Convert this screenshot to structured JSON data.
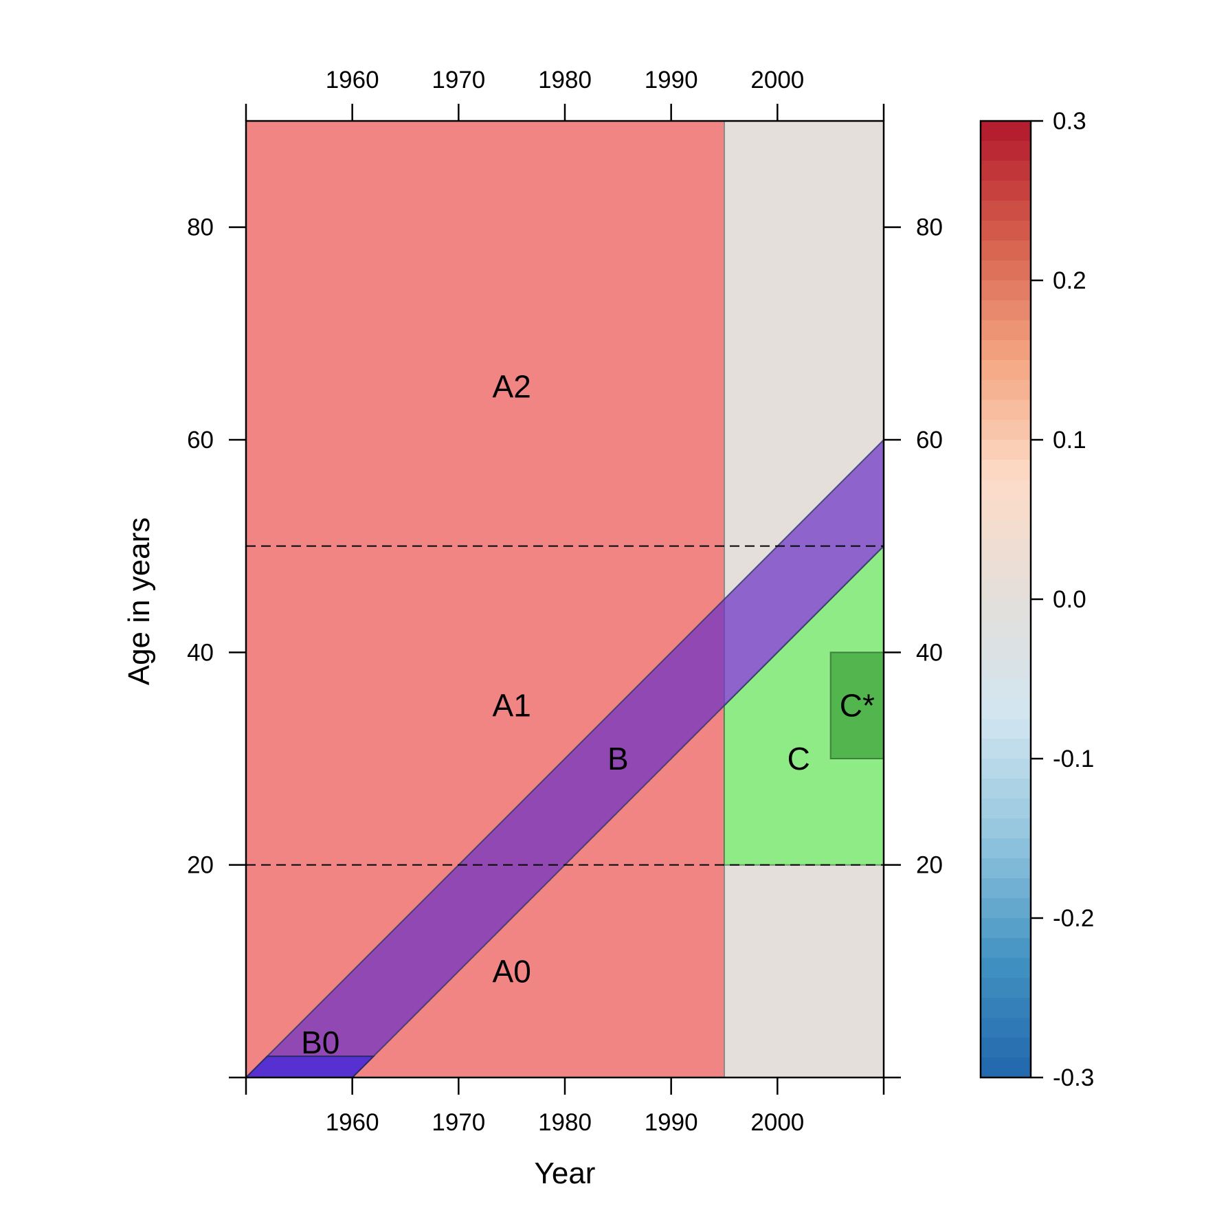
{
  "chart_data": {
    "type": "area",
    "title": "",
    "xlabel": "Year",
    "ylabel": "Age in years",
    "xlim": [
      1950,
      2010
    ],
    "ylim": [
      0,
      90
    ],
    "x_ticks": [
      1960,
      1970,
      1980,
      1990,
      2000
    ],
    "y_ticks": [
      20,
      40,
      60,
      80
    ],
    "dashed_hlines": [
      20,
      50
    ],
    "regions": [
      {
        "name": "A",
        "color": "#F08584",
        "x": [
          1950,
          1995
        ],
        "y": [
          0,
          90
        ]
      },
      {
        "name": "B",
        "color": "#6A2EC6",
        "color_alpha": 0.7,
        "cohort_birth_years": [
          1950,
          1960
        ],
        "x": [
          1950,
          2010
        ]
      },
      {
        "name": "C",
        "color": "#8EEB85",
        "x": [
          1995,
          2010
        ],
        "y": [
          20,
          50
        ],
        "below_cohort": true
      },
      {
        "name": "C*",
        "color": "#52B54D",
        "x": [
          2005,
          2010
        ],
        "y": [
          30,
          40
        ]
      },
      {
        "name": "B0",
        "color": "#5730D2",
        "y": [
          0,
          2
        ],
        "cohort_birth_years": [
          1950,
          1960
        ]
      }
    ],
    "labels": [
      {
        "text": "A2",
        "x": 1975,
        "y": 65
      },
      {
        "text": "A1",
        "x": 1975,
        "y": 35
      },
      {
        "text": "A0",
        "x": 1975,
        "y": 10
      },
      {
        "text": "B",
        "x": 1985,
        "y": 30
      },
      {
        "text": "B0",
        "x": 1957,
        "y": 3.3
      },
      {
        "text": "C",
        "x": 2002,
        "y": 30
      },
      {
        "text": "C*",
        "x": 2007.5,
        "y": 35
      }
    ],
    "background_color": "#E4DFDB",
    "colorkey": {
      "range": [
        -0.3,
        0.3
      ],
      "ticks": [
        "0.3",
        "0.2",
        "0.1",
        "0.0",
        "-0.1",
        "-0.2",
        "-0.3"
      ],
      "tick_values": [
        0.3,
        0.2,
        0.1,
        0.0,
        -0.1,
        -0.2,
        -0.3
      ],
      "colors": [
        "#B2182B",
        "#D6604D",
        "#F4A582",
        "#FDDBC7",
        "#E4DFDB",
        "#D1E5F0",
        "#92C5DE",
        "#4393C3",
        "#2166AC"
      ],
      "color_positions": [
        0.3,
        0.225,
        0.15,
        0.075,
        0.0,
        -0.075,
        -0.15,
        -0.225,
        -0.3
      ]
    }
  }
}
